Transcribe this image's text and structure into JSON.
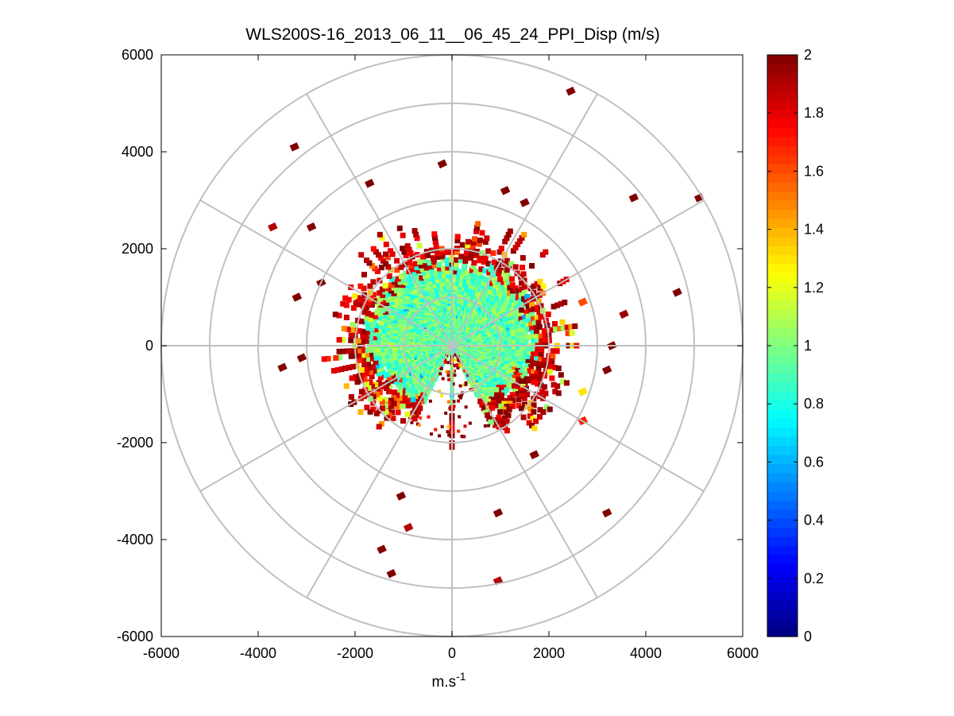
{
  "chart_data": {
    "type": "heatmap",
    "subtype": "polar-ppi-scan",
    "title": "WLS200S-16_2013_06_11__06_45_24_PPI_Disp (m/s)",
    "xlabel": "m.s",
    "xlabel_superscript": "-1",
    "ylabel": "",
    "xlim": [
      -6000,
      6000
    ],
    "ylim": [
      -6000,
      6000
    ],
    "xticks": [
      -6000,
      -4000,
      -2000,
      0,
      2000,
      4000,
      6000
    ],
    "yticks": [
      6000,
      4000,
      2000,
      0,
      -2000,
      -4000,
      -6000
    ],
    "xtick_labels": [
      "-6000",
      "-4000",
      "-2000",
      "0",
      "2000",
      "4000",
      "6000"
    ],
    "ytick_labels": [
      "6000",
      "4000",
      "2000",
      "0",
      "-2000",
      "-4000",
      "-6000"
    ],
    "polar_grid": {
      "ring_radii": [
        1000,
        2000,
        3000,
        4000,
        5000,
        6000
      ],
      "spoke_angles_deg": [
        0,
        30,
        60,
        90,
        120,
        150,
        180,
        210,
        240,
        270,
        300,
        330
      ]
    },
    "colorbar": {
      "colormap": "jet",
      "range": [
        0,
        2
      ],
      "ticks": [
        2,
        1.8,
        1.6,
        1.4,
        1.2,
        1,
        0.8,
        0.6,
        0.4,
        0.2,
        0
      ],
      "tick_labels": [
        "2",
        "1.8",
        "1.6",
        "1.4",
        "1.2",
        "1",
        "0.8",
        "0.6",
        "0.4",
        "0.2",
        "0"
      ]
    },
    "data_field": {
      "core_max_range": 2000,
      "core_typical_value": 0.95,
      "edge_band_range": [
        1500,
        2800
      ],
      "edge_typical_value": 2.0,
      "missing_sector_deg": [
        -25,
        25
      ],
      "range_step": 50,
      "azimuth_step_deg": 3
    },
    "isolated_points": [
      {
        "x": 2450,
        "y": 5250,
        "v": 2.0
      },
      {
        "x": -3250,
        "y": 4100,
        "v": 2.0
      },
      {
        "x": -1700,
        "y": 3350,
        "v": 2.0
      },
      {
        "x": -200,
        "y": 3750,
        "v": 2.0
      },
      {
        "x": 1100,
        "y": 3200,
        "v": 2.0
      },
      {
        "x": 1500,
        "y": 2950,
        "v": 2.0
      },
      {
        "x": 3750,
        "y": 3050,
        "v": 2.0
      },
      {
        "x": 5100,
        "y": 3050,
        "v": 2.0
      },
      {
        "x": -3700,
        "y": 2450,
        "v": 1.9
      },
      {
        "x": -2900,
        "y": 2450,
        "v": 2.0
      },
      {
        "x": -3200,
        "y": 1000,
        "v": 2.0
      },
      {
        "x": -2700,
        "y": 1300,
        "v": 2.0
      },
      {
        "x": 4650,
        "y": 1100,
        "v": 2.0
      },
      {
        "x": 3550,
        "y": 650,
        "v": 1.95
      },
      {
        "x": 2700,
        "y": 900,
        "v": 1.6
      },
      {
        "x": 3300,
        "y": 0,
        "v": 2.0
      },
      {
        "x": -3500,
        "y": -450,
        "v": 2.0
      },
      {
        "x": -3100,
        "y": -250,
        "v": 2.0
      },
      {
        "x": 3200,
        "y": -500,
        "v": 2.0
      },
      {
        "x": 2700,
        "y": -950,
        "v": 1.3
      },
      {
        "x": 2700,
        "y": -1550,
        "v": 1.7
      },
      {
        "x": 1700,
        "y": -2250,
        "v": 2.0
      },
      {
        "x": -1050,
        "y": -3100,
        "v": 2.0
      },
      {
        "x": 950,
        "y": -3450,
        "v": 2.0
      },
      {
        "x": 3200,
        "y": -3450,
        "v": 2.0
      },
      {
        "x": -900,
        "y": -3750,
        "v": 1.9
      },
      {
        "x": -1450,
        "y": -4200,
        "v": 2.0
      },
      {
        "x": -1250,
        "y": -4700,
        "v": 2.0
      },
      {
        "x": 950,
        "y": -4850,
        "v": 1.9
      }
    ]
  }
}
